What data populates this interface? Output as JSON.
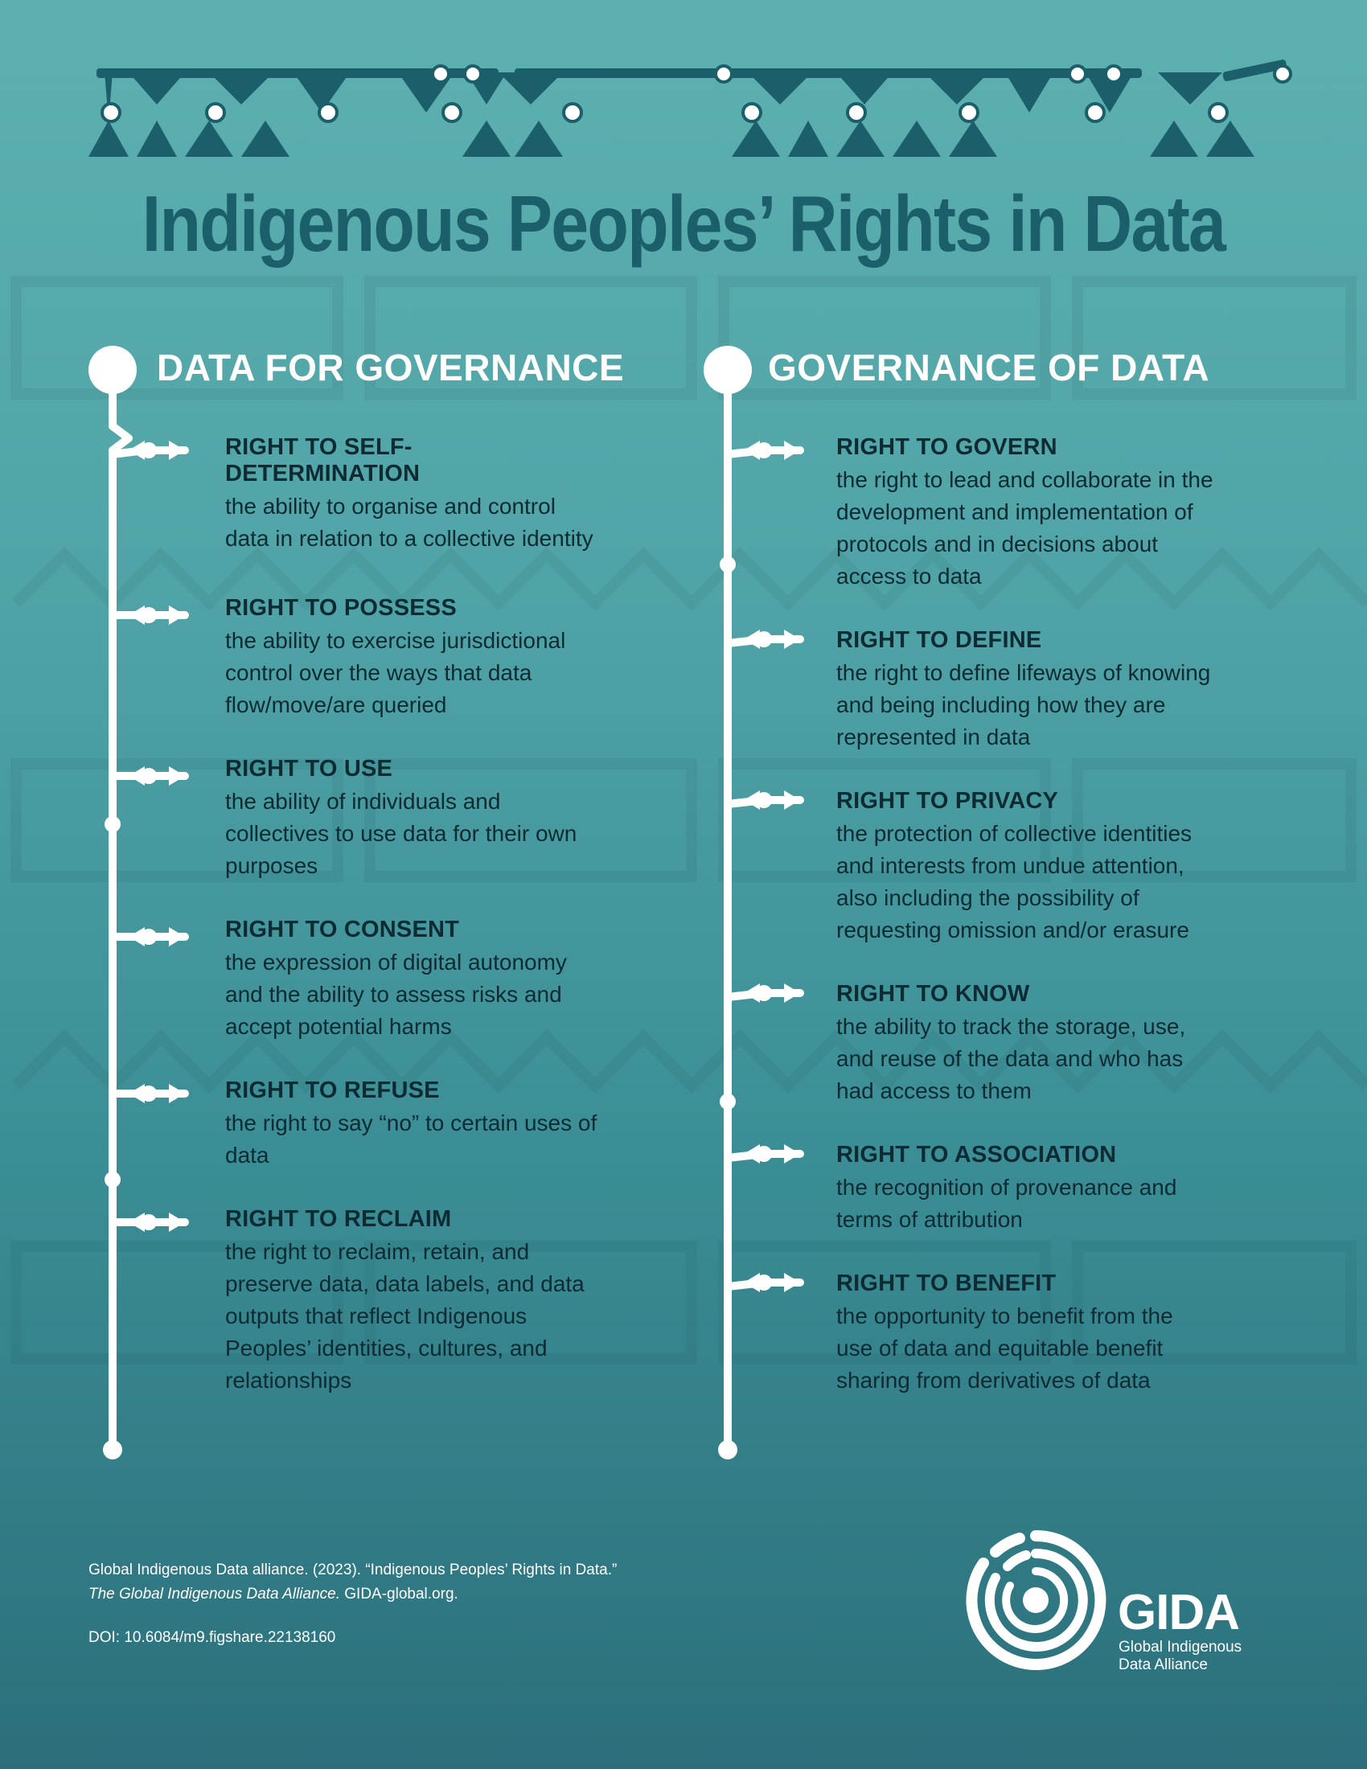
{
  "title": "Indigenous Peoples’ Rights in Data",
  "columns": {
    "left": {
      "heading": "DATA FOR GOVERNANCE",
      "items": [
        {
          "title": "RIGHT TO SELF-DETERMINATION",
          "desc": "the ability to organise and control data in relation to a collective identity"
        },
        {
          "title": "RIGHT TO POSSESS",
          "desc": "the ability to exercise jurisdictional control over the ways that data flow/move/are queried"
        },
        {
          "title": "RIGHT TO USE",
          "desc": "the ability of individuals and collectives to use data for their own purposes"
        },
        {
          "title": "RIGHT TO CONSENT",
          "desc": "the expression of digital autonomy and the ability to assess risks and accept potential harms"
        },
        {
          "title": "RIGHT TO REFUSE",
          "desc": "the right to say “no” to certain uses of data"
        },
        {
          "title": "RIGHT TO RECLAIM",
          "desc": "the right to reclaim, retain, and preserve data, data labels, and data outputs that reflect Indigenous Peoples’ identities, cultures, and relationships"
        }
      ]
    },
    "right": {
      "heading": "GOVERNANCE OF DATA",
      "items": [
        {
          "title": "RIGHT TO GOVERN",
          "desc": "the right to lead and collaborate in the development and implementation of protocols and in decisions about access to data"
        },
        {
          "title": "RIGHT TO DEFINE",
          "desc": "the right to define lifeways of knowing and being including how they are represented in data"
        },
        {
          "title": "RIGHT TO PRIVACY",
          "desc": "the protection of collective identities and interests from undue attention, also including the possibility of requesting omission and/or erasure"
        },
        {
          "title": "RIGHT TO KNOW",
          "desc": "the ability to track the storage, use, and reuse of the data and who has had access to them"
        },
        {
          "title": "RIGHT TO ASSOCIATION",
          "desc": "the recognition of provenance and terms of attribution"
        },
        {
          "title": "RIGHT TO BENEFIT",
          "desc": "the opportunity to benefit from the use of data and equitable benefit sharing from derivatives of data"
        }
      ]
    }
  },
  "citation": {
    "line1": "Global Indigenous Data alliance. (2023). “Indigenous Peoples’ Rights in Data.”",
    "line2_italic": "The Global Indigenous Data Alliance.",
    "line2_rest": " GIDA-global.org.",
    "doi": "DOI: 10.6084/m9.figshare.22138160"
  },
  "logo": {
    "name": "GIDA",
    "subtitle_line1": "Global Indigenous",
    "subtitle_line2": "Data Alliance"
  },
  "colors": {
    "title": "#1a5f6a",
    "deco": "#1a5f6a",
    "text": "#0e2a33",
    "spine": "#ffffff"
  },
  "icons": [
    "header-pattern-icon",
    "timeline-spine-icon",
    "gida-logo-icon"
  ]
}
